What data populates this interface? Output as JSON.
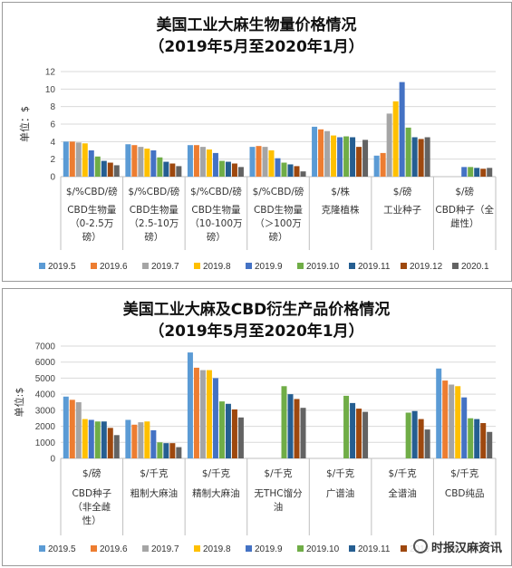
{
  "colors": [
    "#5b9bd5",
    "#ed7d31",
    "#a5a5a5",
    "#ffc000",
    "#4472c4",
    "#70ad47",
    "#255e91",
    "#9e480e",
    "#636363"
  ],
  "legend": [
    "2019.5",
    "2019.6",
    "2019.7",
    "2019.8",
    "2019.9",
    "2019.10",
    "2019.11",
    "2019.12",
    "2020.1"
  ],
  "watermark": "时报汉麻资讯",
  "chart_data": [
    {
      "type": "bar",
      "title": "美国工业大麻生物量价格情况",
      "subtitle": "（2019年5月至2020年1月）",
      "ylabel": "单位：$",
      "ylim": [
        0,
        12
      ],
      "yticks": [
        0,
        2,
        4,
        6,
        8,
        10,
        12
      ],
      "grid": true,
      "legend_position": "bottom",
      "categories": [
        {
          "unit": "$/%CBD/磅",
          "name": [
            "CBD生物量",
            "（0-2.5万",
            "磅）"
          ]
        },
        {
          "unit": "$/%CBD/磅",
          "name": [
            "CBD生物量",
            "（2.5-10万",
            "磅）"
          ]
        },
        {
          "unit": "$/%CBD/磅",
          "name": [
            "CBD生物量",
            "（10-100万",
            "磅）"
          ]
        },
        {
          "unit": "$/%CBD/磅",
          "name": [
            "CBD生物量",
            "（＞100万",
            "磅）"
          ]
        },
        {
          "unit": "$/株",
          "name": [
            "克隆植株"
          ]
        },
        {
          "unit": "$/磅",
          "name": [
            "工业种子"
          ]
        },
        {
          "unit": "$/磅",
          "name": [
            "CBD种子（全",
            "雌性）"
          ]
        }
      ],
      "series": [
        {
          "name": "2019.5",
          "values": [
            4.0,
            3.7,
            3.6,
            3.4,
            5.7,
            2.4,
            null
          ]
        },
        {
          "name": "2019.6",
          "values": [
            4.0,
            3.6,
            3.6,
            3.5,
            5.4,
            2.7,
            null
          ]
        },
        {
          "name": "2019.7",
          "values": [
            3.9,
            3.4,
            3.4,
            3.4,
            5.2,
            7.2,
            null
          ]
        },
        {
          "name": "2019.8",
          "values": [
            3.8,
            3.2,
            3.1,
            3.0,
            4.7,
            8.6,
            null
          ]
        },
        {
          "name": "2019.9",
          "values": [
            3.0,
            3.0,
            2.7,
            2.1,
            4.5,
            10.8,
            1.1
          ]
        },
        {
          "name": "2019.10",
          "values": [
            2.3,
            2.2,
            1.8,
            1.6,
            4.6,
            5.6,
            1.1
          ]
        },
        {
          "name": "2019.11",
          "values": [
            1.8,
            1.7,
            1.7,
            1.4,
            4.5,
            4.5,
            1.0
          ]
        },
        {
          "name": "2019.12",
          "values": [
            1.6,
            1.5,
            1.5,
            1.2,
            3.4,
            4.3,
            0.9
          ]
        },
        {
          "name": "2020.1",
          "values": [
            1.3,
            1.2,
            1.1,
            0.6,
            4.2,
            4.5,
            1.0
          ]
        }
      ]
    },
    {
      "type": "bar",
      "title": "美国工业大麻及CBD衍生产品价格情况",
      "subtitle": "（2019年5月至2020年1月）",
      "ylabel": "单位:$",
      "ylim": [
        0,
        7000
      ],
      "yticks": [
        0,
        1000,
        2000,
        3000,
        4000,
        5000,
        6000,
        7000
      ],
      "grid": true,
      "legend_position": "bottom",
      "categories": [
        {
          "unit": "$/磅",
          "name": [
            "CBD种子",
            "（非全雌",
            "性）"
          ]
        },
        {
          "unit": "$/千克",
          "name": [
            "粗制大麻油"
          ]
        },
        {
          "unit": "$/千克",
          "name": [
            "精制大麻油"
          ]
        },
        {
          "unit": "$/千克",
          "name": [
            "无THC馏分",
            "油"
          ]
        },
        {
          "unit": "$/千克",
          "name": [
            "广谱油"
          ]
        },
        {
          "unit": "$/千克",
          "name": [
            "全谱油"
          ]
        },
        {
          "unit": "$/千克",
          "name": [
            "CBD纯品"
          ]
        }
      ],
      "series": [
        {
          "name": "2019.5",
          "values": [
            3850,
            2400,
            6600,
            null,
            null,
            null,
            5600
          ]
        },
        {
          "name": "2019.6",
          "values": [
            3650,
            2100,
            5650,
            null,
            null,
            null,
            4850
          ]
        },
        {
          "name": "2019.7",
          "values": [
            3500,
            2250,
            5500,
            null,
            null,
            null,
            4600
          ]
        },
        {
          "name": "2019.8",
          "values": [
            2450,
            2300,
            5500,
            null,
            null,
            null,
            4500
          ]
        },
        {
          "name": "2019.9",
          "values": [
            2400,
            1750,
            5000,
            null,
            null,
            null,
            3800
          ]
        },
        {
          "name": "2019.10",
          "values": [
            2300,
            1000,
            3550,
            4500,
            3900,
            2850,
            2500
          ]
        },
        {
          "name": "2019.11",
          "values": [
            2300,
            950,
            3400,
            4000,
            3450,
            2950,
            2450
          ]
        },
        {
          "name": "2019.12",
          "values": [
            1900,
            950,
            3050,
            3700,
            3100,
            2450,
            2200
          ]
        },
        {
          "name": "2020.1",
          "values": [
            1450,
            700,
            2550,
            3150,
            2900,
            1800,
            1650
          ]
        }
      ]
    }
  ]
}
